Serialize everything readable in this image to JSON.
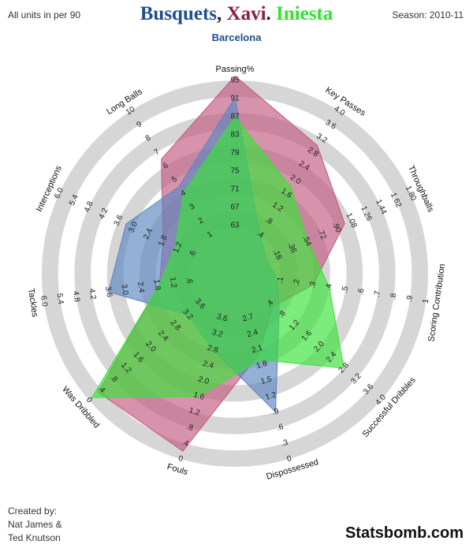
{
  "header": {
    "units_note": "All units in per 90",
    "season": "Season: 2010-11",
    "team": "Barcelona",
    "players": [
      "Busquets",
      "Xavi",
      "Iniesta"
    ],
    "separators": [
      ", ",
      ". "
    ]
  },
  "footer": {
    "credits": [
      "Created by:",
      "Nat James &",
      "Ted Knutson"
    ],
    "brand": "Statsbomb.com"
  },
  "colors": {
    "ring": "#d6d6d6",
    "busquets": "#1f4e8c",
    "xavi": "#8b1e4a",
    "iniesta": "#2ee52e",
    "busquets_fill": "#5b86c0",
    "xavi_fill": "#c2577f",
    "iniesta_fill": "#36e336"
  },
  "chart_data": {
    "type": "radar",
    "axes": [
      {
        "name": "Passing%",
        "min": 59,
        "max": 95,
        "ticks": [
          "63",
          "67",
          "71",
          "75",
          "79",
          "83",
          "87",
          "91",
          "95"
        ]
      },
      {
        "name": "Key Passes",
        "min": 0,
        "max": 4.0,
        "ticks": [
          ".4",
          ".8",
          "1.2",
          "1.6",
          "2.0",
          "2.4",
          "2.8",
          "3.2",
          "3.6",
          "4.0"
        ]
      },
      {
        "name": "Throughballs",
        "min": 0,
        "max": 1.8,
        "ticks": [
          ".18",
          ".36",
          ".54",
          ".72",
          ".90",
          "1.08",
          "1.26",
          "1.44",
          "1.62",
          "1.80"
        ]
      },
      {
        "name": "Scoring Contribution",
        "min": 0,
        "max": 1,
        "ticks": [
          ".1",
          ".2",
          ".3",
          ".4",
          ".5",
          ".6",
          ".7",
          ".8",
          ".9",
          "1"
        ]
      },
      {
        "name": "Successful Dribbles",
        "min": 0,
        "max": 4.0,
        "ticks": [
          ".4",
          ".8",
          "1.2",
          "1.6",
          "2.0",
          "2.4",
          "2.8",
          "3.2",
          "3.6",
          "4.0"
        ]
      },
      {
        "name": "Dispossessed",
        "min": 3,
        "max": 0,
        "ticks": [
          "2.7",
          "2.4",
          "2.1",
          "1.8",
          "1.5",
          "1.2",
          ".9",
          ".6",
          ".3",
          "0"
        ]
      },
      {
        "name": "Fouls",
        "min": 4,
        "max": 0,
        "ticks": [
          "3.6",
          "3.2",
          "2.8",
          "2.4",
          "2.0",
          "1.6",
          "1.2",
          ".8",
          ".4",
          "0"
        ]
      },
      {
        "name": "Was Dribbled",
        "min": 4,
        "max": 0,
        "ticks": [
          "3.6",
          "3.2",
          "2.8",
          "2.4",
          "2.0",
          "1.6",
          "1.2",
          ".8",
          ".4",
          "0"
        ]
      },
      {
        "name": "Tackles",
        "min": 0,
        "max": 6.0,
        "ticks": [
          ".6",
          "1.2",
          "1.8",
          "2.4",
          "3.0",
          "3.6",
          "4.2",
          "4.8",
          "5.4",
          "6.0"
        ]
      },
      {
        "name": "Interceptions",
        "min": 0,
        "max": 6.0,
        "ticks": [
          ".6",
          "1.2",
          "1.8",
          "2.4",
          "3.0",
          "3.6",
          "4.2",
          "4.8",
          "5.4",
          "6.0"
        ]
      },
      {
        "name": "Long Balls",
        "min": 0,
        "max": 10,
        "ticks": [
          "1",
          "2",
          "3",
          "4",
          "5",
          "6",
          "7",
          "8",
          "9",
          "10"
        ]
      }
    ],
    "series": [
      {
        "name": "Busquets",
        "values": [
          91.2,
          0.4,
          0.05,
          0.08,
          0.7,
          0.9,
          2.8,
          3.2,
          3.6,
          3.3,
          4.5
        ]
      },
      {
        "name": "Xavi",
        "values": [
          96.0,
          3.0,
          1.0,
          0.3,
          0.5,
          2.0,
          0.2,
          0.3,
          1.7,
          1.8,
          6.5
        ]
      },
      {
        "name": "Iniesta",
        "values": [
          87.0,
          1.8,
          0.55,
          0.4,
          2.8,
          1.9,
          1.6,
          0.1,
          1.7,
          1.3,
          4.0
        ]
      }
    ]
  }
}
